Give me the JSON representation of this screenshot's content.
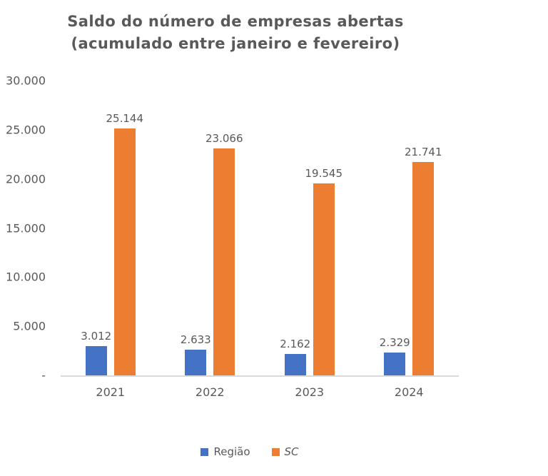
{
  "chart_data": {
    "type": "bar",
    "title": "Saldo do número de empresas abertas",
    "subtitle": "(acumulado entre janeiro e fevereiro)",
    "categories": [
      "2021",
      "2022",
      "2023",
      "2024"
    ],
    "series": [
      {
        "name": "Região",
        "color": "#4472C4",
        "values": [
          3012,
          2633,
          2162,
          2329
        ],
        "labels": [
          "3.012",
          "2.633",
          "2.162",
          "2.329"
        ],
        "legend_italic": false
      },
      {
        "name": "SC",
        "color": "#ED7D31",
        "values": [
          25144,
          23066,
          19545,
          21741
        ],
        "labels": [
          "25.144",
          "23.066",
          "19.545",
          "21.741"
        ],
        "legend_italic": true
      }
    ],
    "y_axis": {
      "min": 0,
      "max": 30000,
      "tick_step": 5000,
      "tick_labels": [
        "30.000",
        "25.000",
        "20.000",
        "15.000",
        "10.000",
        "5.000",
        "-"
      ]
    },
    "grid": false,
    "legend_position": "bottom",
    "text_color": "#595959",
    "axis_line_color": "#D9D9D9"
  }
}
